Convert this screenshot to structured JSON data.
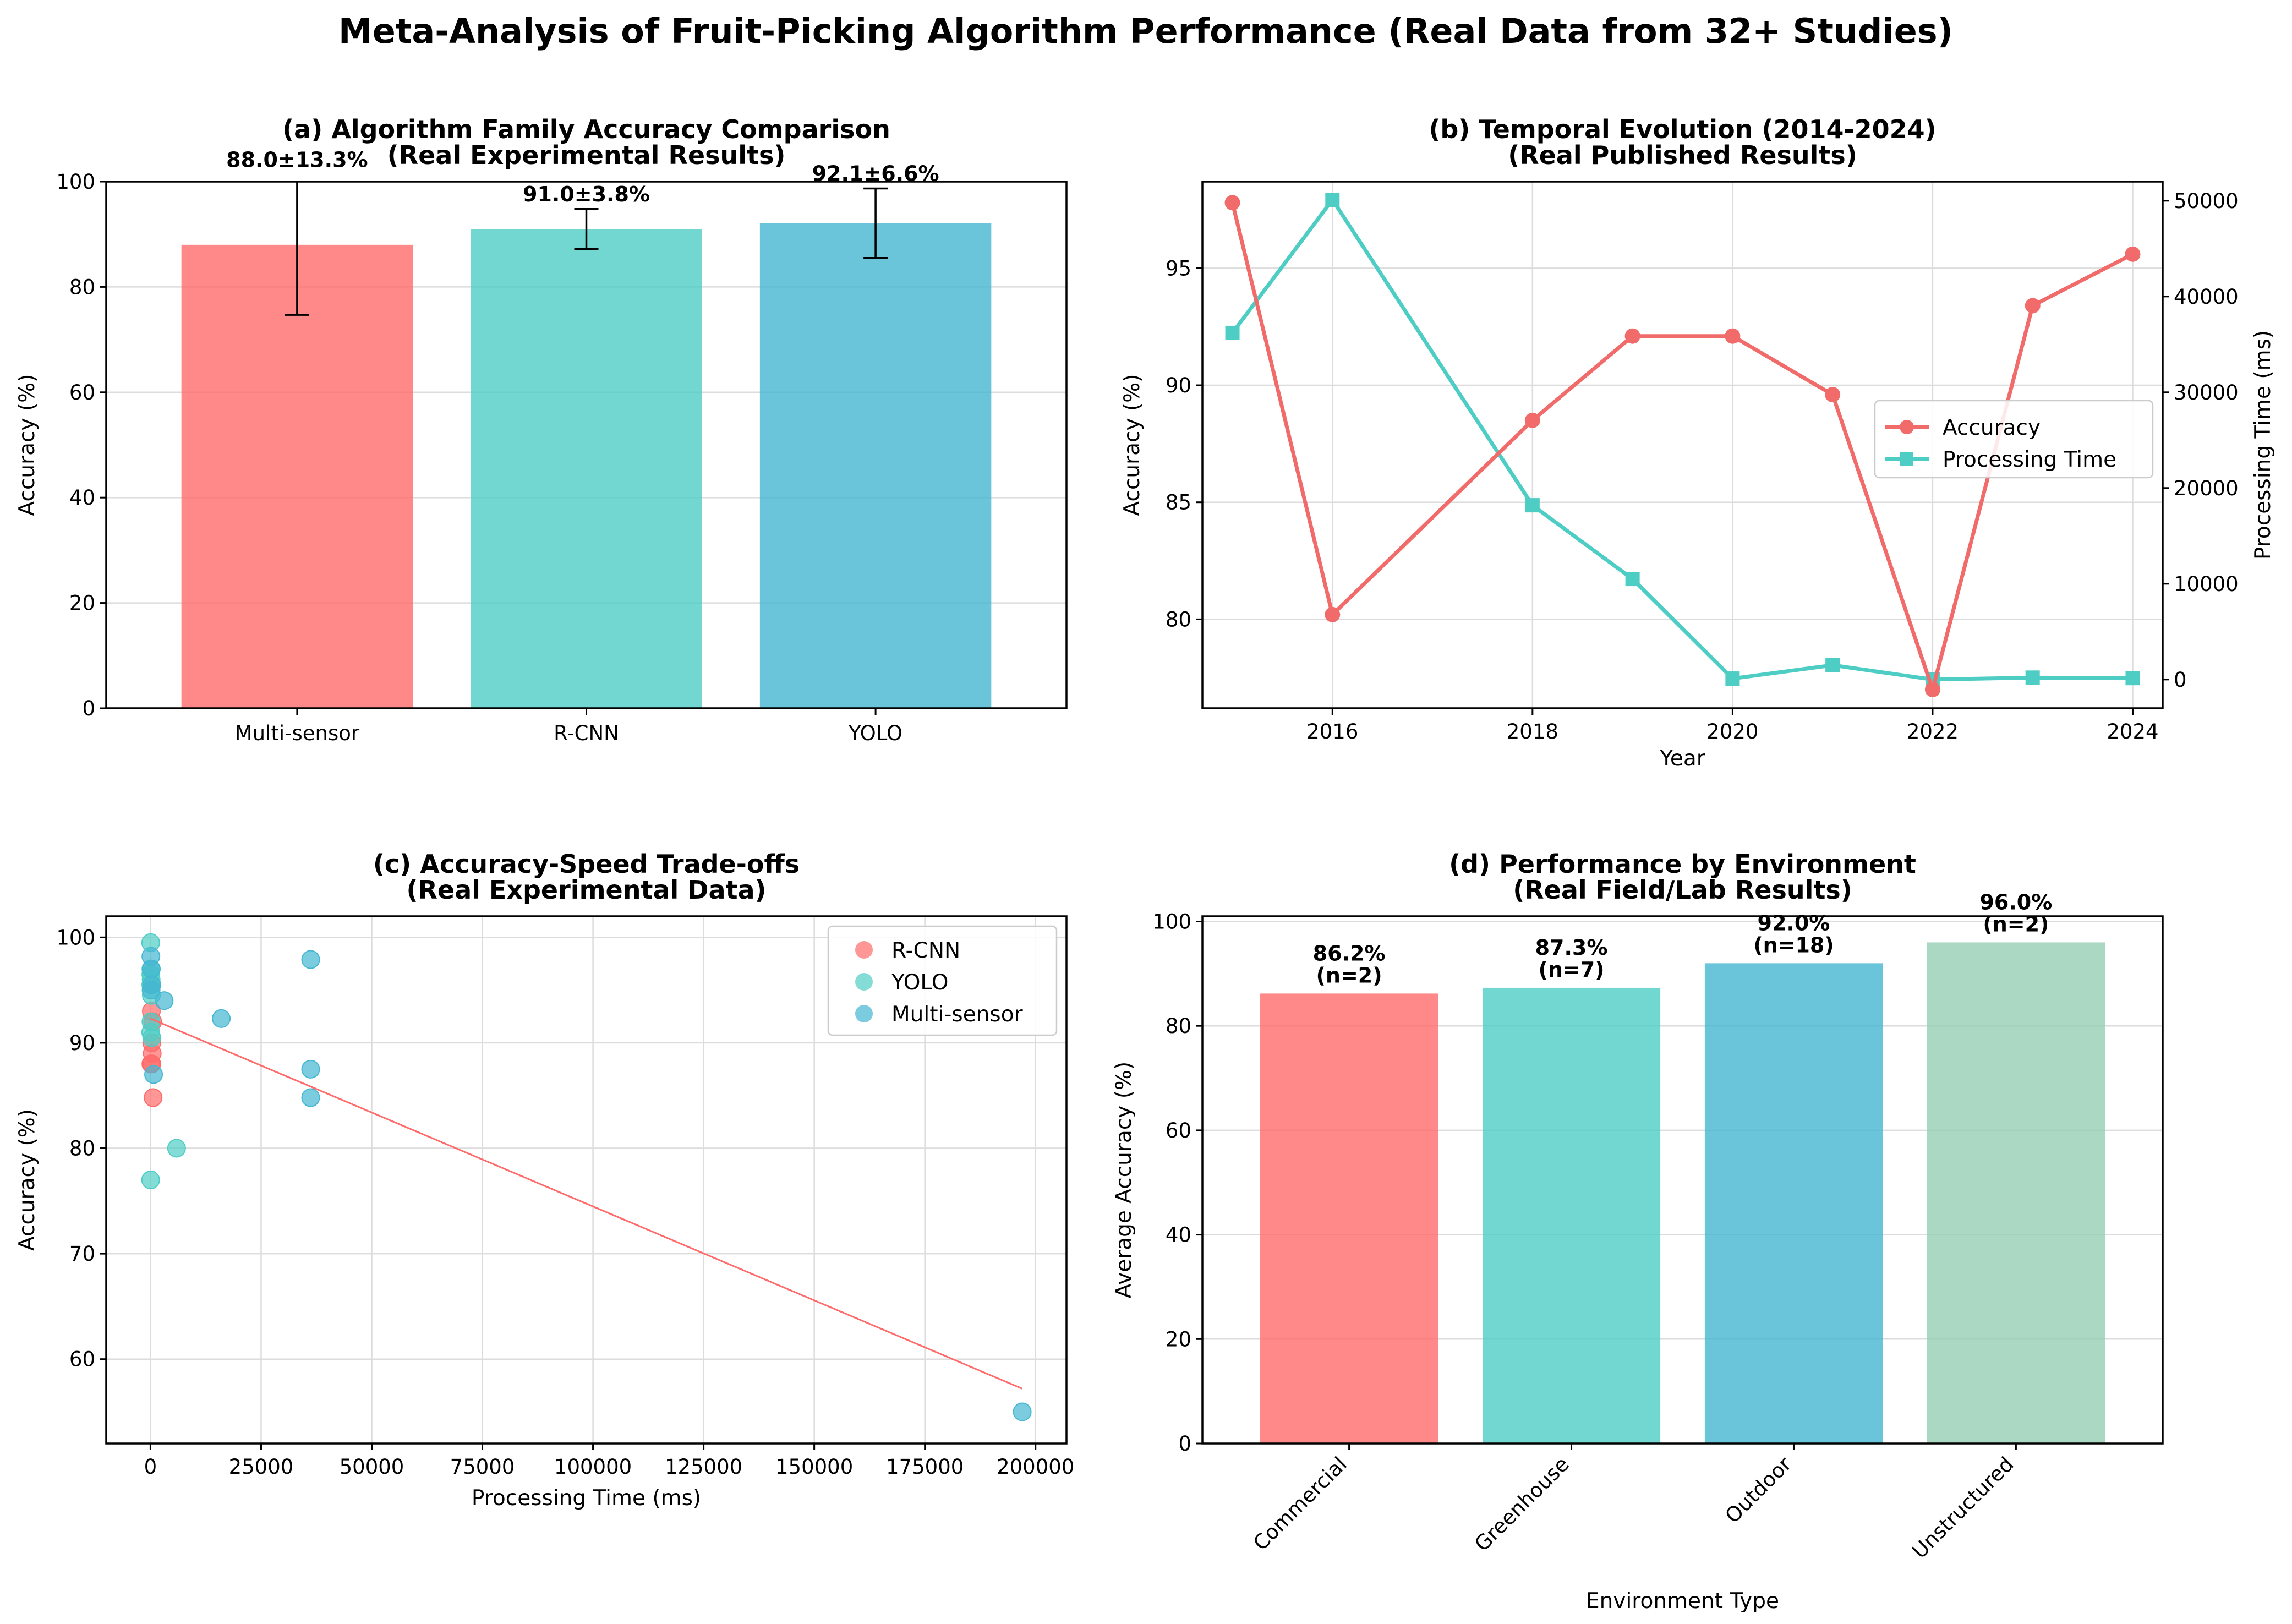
{
  "figure_title": "Meta-Analysis of Fruit-Picking Algorithm Performance (Real Data from 32+ Studies)",
  "colors": {
    "red": "#ff6b6b",
    "teal": "#4ecdc4",
    "blue": "#45b7d1",
    "green": "#96ceb4",
    "accuracy_line": "#f26b6b",
    "time_line": "#4ecdc4"
  },
  "chart_data": [
    {
      "id": "a",
      "type": "bar",
      "title_line1": "(a) Algorithm Family Accuracy Comparison",
      "title_line2": "(Real Experimental Results)",
      "xlabel": "",
      "ylabel": "Accuracy (%)",
      "ylim": [
        0,
        100
      ],
      "yticks": [
        0,
        20,
        40,
        60,
        80,
        100
      ],
      "grid": true,
      "categories": [
        "Multi-sensor",
        "R-CNN",
        "YOLO"
      ],
      "values": [
        88.0,
        91.0,
        92.1
      ],
      "errors": [
        13.3,
        3.8,
        6.6
      ],
      "labels": [
        "88.0±13.3%",
        "91.0±3.8%",
        "92.1±6.6%"
      ],
      "bar_colors": [
        "#ff6b6b",
        "#4ecdc4",
        "#45b7d1"
      ]
    },
    {
      "id": "b",
      "type": "line",
      "title_line1": "(b) Temporal Evolution (2014-2024)",
      "title_line2": "(Real Published Results)",
      "xlabel": "Year",
      "ylabel": "Accuracy (%)",
      "ylabel_right": "Processing Time (ms)",
      "xlim": [
        2014.7,
        2024.3
      ],
      "xticks": [
        2016,
        2018,
        2020,
        2022,
        2024
      ],
      "ylim": [
        76.2,
        98.7
      ],
      "yticks": [
        80,
        85,
        90,
        95
      ],
      "ylim_right": [
        -3000,
        52000
      ],
      "yticks_right": [
        0,
        10000,
        20000,
        30000,
        40000,
        50000
      ],
      "grid": true,
      "legend_position": "center-right",
      "series": [
        {
          "name": "Accuracy",
          "axis": "left",
          "marker": "circle",
          "x": [
            2015,
            2016,
            2018,
            2019,
            2020,
            2021,
            2022,
            2023,
            2024
          ],
          "y": [
            97.8,
            80.2,
            88.5,
            92.1,
            92.1,
            89.6,
            77.0,
            93.4,
            95.6
          ]
        },
        {
          "name": "Processing Time",
          "axis": "right",
          "marker": "square",
          "x": [
            2015,
            2016,
            2018,
            2019,
            2020,
            2021,
            2022,
            2023,
            2024
          ],
          "y": [
            36200,
            50100,
            18200,
            10500,
            100,
            1500,
            0,
            200,
            150
          ]
        }
      ]
    },
    {
      "id": "c",
      "type": "scatter",
      "title_line1": "(c) Accuracy-Speed Trade-offs",
      "title_line2": "(Real Experimental Data)",
      "xlabel": "Processing Time (ms)",
      "ylabel": "Accuracy (%)",
      "xlim": [
        -10000,
        207000
      ],
      "xticks": [
        0,
        25000,
        50000,
        75000,
        100000,
        125000,
        150000,
        175000,
        200000
      ],
      "ylim": [
        52,
        102
      ],
      "yticks": [
        60,
        70,
        80,
        90,
        100
      ],
      "grid": true,
      "legend_position": "top-right",
      "trend": {
        "x": [
          0,
          197000
        ],
        "y": [
          92.3,
          57.2
        ]
      },
      "series": [
        {
          "name": "R-CNN",
          "x": [
            200,
            300,
            100,
            500,
            400,
            600,
            300
          ],
          "y": [
            93.0,
            90.0,
            88.0,
            92.0,
            89.0,
            84.8,
            88.0
          ]
        },
        {
          "name": "YOLO",
          "x": [
            50,
            100,
            150,
            80,
            200,
            120,
            60,
            5900,
            40,
            90,
            300
          ],
          "y": [
            99.5,
            97.0,
            96.0,
            95.5,
            94.5,
            92.0,
            91.0,
            80.0,
            77.0,
            96.5,
            90.5
          ]
        },
        {
          "name": "Multi-sensor",
          "x": [
            100,
            200,
            300,
            3100,
            16000,
            36200,
            36200,
            36200,
            700,
            197000,
            150
          ],
          "y": [
            98.2,
            97.0,
            95.5,
            94.0,
            92.3,
            97.9,
            87.5,
            84.8,
            87.0,
            55.0,
            95.0
          ]
        }
      ]
    },
    {
      "id": "d",
      "type": "bar",
      "title_line1": "(d) Performance by Environment",
      "title_line2": "(Real Field/Lab Results)",
      "xlabel": "Environment Type",
      "ylabel": "Average Accuracy (%)",
      "ylim": [
        0,
        101
      ],
      "yticks": [
        0,
        20,
        40,
        60,
        80,
        100
      ],
      "grid": true,
      "categories": [
        "Commercial",
        "Greenhouse",
        "Outdoor",
        "Unstructured"
      ],
      "values": [
        86.2,
        87.3,
        92.0,
        96.0
      ],
      "labels_line1": [
        "86.2%",
        "87.3%",
        "92.0%",
        "96.0%"
      ],
      "labels_line2": [
        "(n=2)",
        "(n=7)",
        "(n=18)",
        "(n=2)"
      ],
      "bar_colors": [
        "#ff6b6b",
        "#4ecdc4",
        "#45b7d1",
        "#96ceb4"
      ]
    }
  ]
}
